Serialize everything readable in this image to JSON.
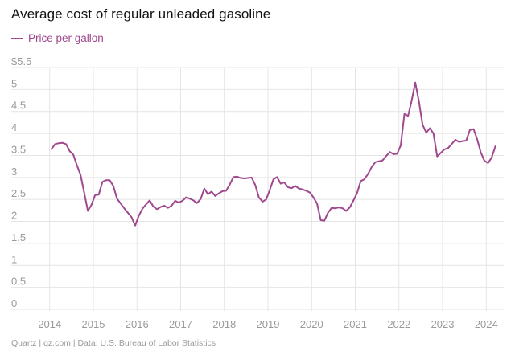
{
  "title": "Average cost of regular unleaded gasoline",
  "source": "Quartz | qz.com | Data: U.S. Bureau of Labor Statistics",
  "colors": {
    "line": "#a0488e",
    "grid": "#e4e4e4",
    "tick": "#9a9a9a",
    "title": "#111111"
  },
  "chart_data": {
    "type": "line",
    "title": "Average cost of regular unleaded gasoline",
    "xlabel": "",
    "ylabel": "",
    "grid": true,
    "legend": "top-left",
    "xlim": [
      2013.6,
      2024.4
    ],
    "ylim": [
      0,
      5.5
    ],
    "x_ticks": [
      2014,
      2015,
      2016,
      2017,
      2018,
      2019,
      2020,
      2021,
      2022,
      2023,
      2024
    ],
    "x_tick_labels": [
      "2014",
      "2015",
      "2016",
      "2017",
      "2018",
      "2019",
      "2020",
      "2021",
      "2022",
      "2023",
      "2024"
    ],
    "y_ticks": [
      0,
      0.5,
      1,
      1.5,
      2,
      2.5,
      3,
      3.5,
      4,
      4.5,
      5,
      5.5
    ],
    "y_tick_labels": [
      "0",
      "0.5",
      "1",
      "1.5",
      "2",
      "2.5",
      "3",
      "3.5",
      "4",
      "4.5",
      "5",
      "$5.5"
    ],
    "series": [
      {
        "name": "Price per gallon",
        "x": [
          "2014-01",
          "2014-02",
          "2014-03",
          "2014-04",
          "2014-05",
          "2014-06",
          "2014-07",
          "2014-08",
          "2014-09",
          "2014-10",
          "2014-11",
          "2014-12",
          "2015-01",
          "2015-02",
          "2015-03",
          "2015-04",
          "2015-05",
          "2015-06",
          "2015-07",
          "2015-08",
          "2015-09",
          "2015-10",
          "2015-11",
          "2015-12",
          "2016-01",
          "2016-02",
          "2016-03",
          "2016-04",
          "2016-05",
          "2016-06",
          "2016-07",
          "2016-08",
          "2016-09",
          "2016-10",
          "2016-11",
          "2016-12",
          "2017-01",
          "2017-02",
          "2017-03",
          "2017-04",
          "2017-05",
          "2017-06",
          "2017-07",
          "2017-08",
          "2017-09",
          "2017-10",
          "2017-11",
          "2017-12",
          "2018-01",
          "2018-02",
          "2018-03",
          "2018-04",
          "2018-05",
          "2018-06",
          "2018-07",
          "2018-08",
          "2018-09",
          "2018-10",
          "2018-11",
          "2018-12",
          "2019-01",
          "2019-02",
          "2019-03",
          "2019-04",
          "2019-05",
          "2019-06",
          "2019-07",
          "2019-08",
          "2019-09",
          "2019-10",
          "2019-11",
          "2019-12",
          "2020-01",
          "2020-02",
          "2020-03",
          "2020-04",
          "2020-05",
          "2020-06",
          "2020-07",
          "2020-08",
          "2020-09",
          "2020-10",
          "2020-11",
          "2020-12",
          "2021-01",
          "2021-02",
          "2021-03",
          "2021-04",
          "2021-05",
          "2021-06",
          "2021-07",
          "2021-08",
          "2021-09",
          "2021-10",
          "2021-11",
          "2021-12",
          "2022-01",
          "2022-02",
          "2022-03",
          "2022-04",
          "2022-05",
          "2022-06",
          "2022-07",
          "2022-08",
          "2022-09",
          "2022-10",
          "2022-11",
          "2022-12",
          "2023-01",
          "2023-02",
          "2023-03",
          "2023-04",
          "2023-05",
          "2023-06",
          "2023-07",
          "2023-08",
          "2023-09",
          "2023-10",
          "2023-11",
          "2023-12",
          "2024-01",
          "2024-02",
          "2024-03"
        ],
        "values": [
          3.52,
          3.63,
          3.65,
          3.66,
          3.63,
          3.47,
          3.39,
          3.15,
          2.93,
          2.52,
          2.11,
          2.25,
          2.47,
          2.48,
          2.77,
          2.81,
          2.81,
          2.68,
          2.39,
          2.28,
          2.17,
          2.07,
          1.97,
          1.78,
          2.0,
          2.16,
          2.26,
          2.35,
          2.21,
          2.15,
          2.2,
          2.23,
          2.18,
          2.23,
          2.34,
          2.3,
          2.34,
          2.42,
          2.39,
          2.35,
          2.29,
          2.38,
          2.62,
          2.49,
          2.55,
          2.45,
          2.51,
          2.56,
          2.57,
          2.71,
          2.88,
          2.89,
          2.86,
          2.85,
          2.86,
          2.87,
          2.7,
          2.42,
          2.32,
          2.37,
          2.59,
          2.83,
          2.88,
          2.73,
          2.76,
          2.65,
          2.63,
          2.68,
          2.62,
          2.6,
          2.57,
          2.53,
          2.42,
          2.28,
          1.9,
          1.89,
          2.07,
          2.18,
          2.17,
          2.19,
          2.17,
          2.11,
          2.19,
          2.35,
          2.52,
          2.79,
          2.83,
          2.95,
          3.11,
          3.22,
          3.24,
          3.26,
          3.36,
          3.45,
          3.4,
          3.41,
          3.6,
          4.32,
          4.27,
          4.62,
          5.03,
          4.6,
          4.07,
          3.89,
          3.99,
          3.87,
          3.35,
          3.43,
          3.51,
          3.54,
          3.63,
          3.73,
          3.68,
          3.7,
          3.71,
          3.95,
          3.97,
          3.74,
          3.44,
          3.25,
          3.2,
          3.33,
          3.58
        ]
      }
    ]
  }
}
